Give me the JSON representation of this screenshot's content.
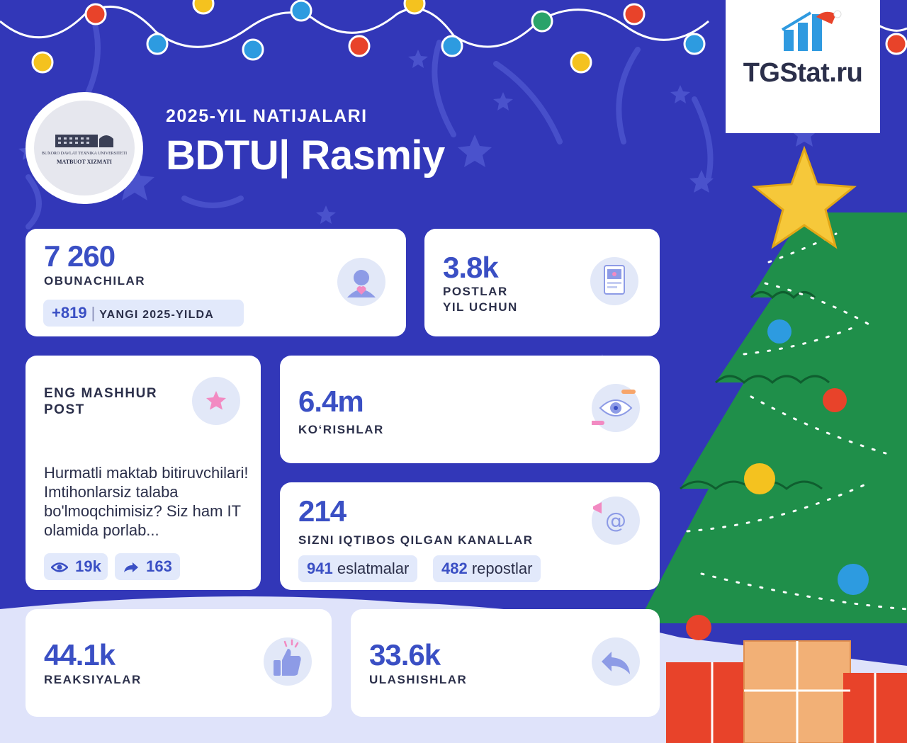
{
  "header": {
    "subtitle": "2025-YIL NATIJALARI",
    "title": "BDTU| Rasmiy",
    "logo_text_line1": "BUXORO DAVLAT TEXNIKA UNIVERSITETI",
    "logo_text_line2": "MATBUOT XIZMATI"
  },
  "brand": {
    "name": "TGStat.ru"
  },
  "subscribers": {
    "value": "7 260",
    "label": "OBUNACHILAR",
    "growth_value": "+819",
    "growth_label": "YANGI 2025-YILDA",
    "icon": "user-heart-icon"
  },
  "posts": {
    "value": "3.8k",
    "label": "POSTLAR\nYIL UCHUN",
    "icon": "document-image-icon"
  },
  "popular_post": {
    "label": "ENG MASHHUR\nPOST",
    "text": "Hurmatli maktab bitiruvchilari! Imtihonlarsiz talaba bo'lmoqchimisiz? Siz ham IT olamida porlab...",
    "views": "19k",
    "shares": "163",
    "icon": "star-icon"
  },
  "views": {
    "value": "6.4m",
    "label": "KO‘RISHLAR",
    "icon": "eye-icon"
  },
  "citations": {
    "value": "214",
    "label": "SIZNI IQTIBOS QILGAN KANALLAR",
    "mentions_value": "941",
    "mentions_label": "eslatmalar",
    "reposts_value": "482",
    "reposts_label": "repostlar",
    "icon": "at-megaphone-icon"
  },
  "reactions": {
    "value": "44.1k",
    "label": "REAKSIYALAR",
    "icon": "thumbs-up-icon"
  },
  "shares": {
    "value": "33.6k",
    "label": "ULASHISHLAR",
    "icon": "share-arrow-icon"
  },
  "colors": {
    "background": "#3237b8",
    "accent": "#3a4fc4",
    "chip": "#e2e9fb",
    "tree": "#1f8f4a"
  }
}
